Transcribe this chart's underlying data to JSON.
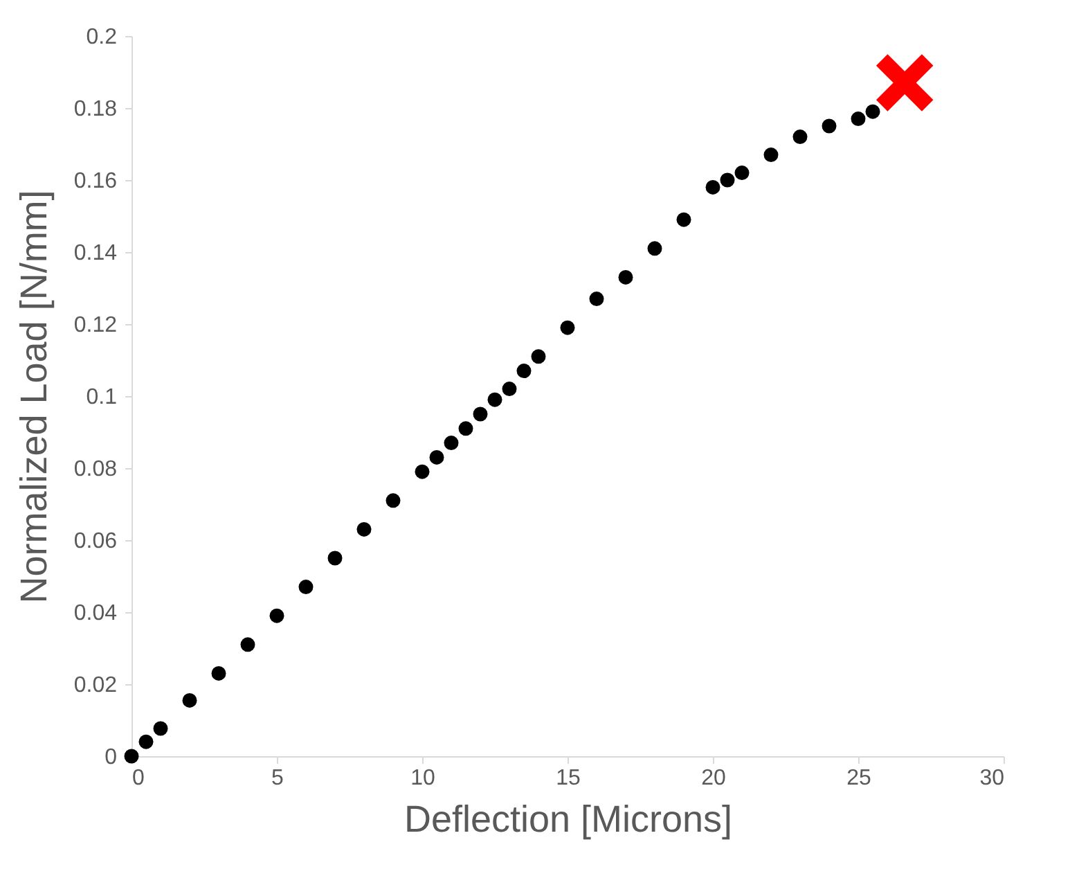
{
  "chart_data": {
    "type": "scatter",
    "xlabel": "Deflection [Microns]",
    "ylabel": "Normalized Load [N/mm]",
    "xlim": [
      0,
      30
    ],
    "xticks": [
      0,
      5,
      10,
      15,
      20,
      25,
      30
    ],
    "ylim": [
      0,
      0.2
    ],
    "yticks": [
      0,
      0.02,
      0.04,
      0.06,
      0.08,
      0.1,
      0.12,
      0.14,
      0.16,
      0.18,
      0.2
    ],
    "grid": false,
    "series": [
      {
        "color": "#000000",
        "marker": "circle",
        "x": [
          0,
          0.5,
          1,
          2,
          3,
          4,
          5,
          6,
          7,
          8,
          9,
          10,
          10.5,
          11,
          11.5,
          12,
          12.5,
          13,
          13.5,
          14,
          15,
          16,
          17,
          18,
          19,
          20,
          20.5,
          21,
          22,
          23,
          24,
          25,
          25.5
        ],
        "values": [
          0,
          0.004,
          0.0077,
          0.0155,
          0.023,
          0.031,
          0.039,
          0.047,
          0.055,
          0.063,
          0.071,
          0.079,
          0.083,
          0.087,
          0.091,
          0.095,
          0.099,
          0.102,
          0.107,
          0.111,
          0.119,
          0.127,
          0.133,
          0.141,
          0.149,
          0.158,
          0.16,
          0.162,
          0.167,
          0.172,
          0.175,
          0.177,
          0.179
        ]
      },
      {
        "color": "#ff0000",
        "marker": "cross",
        "x": [
          26.6
        ],
        "values": [
          0.187
        ]
      }
    ]
  }
}
